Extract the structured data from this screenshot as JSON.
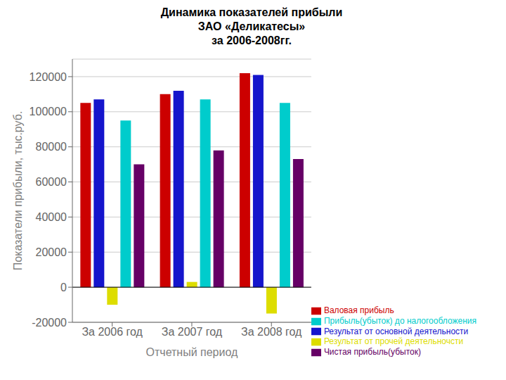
{
  "chart_data": {
    "type": "bar",
    "title": "Динамика показателей прибыли\nЗАО «Деликатесы»\nза 2006-2008гг.",
    "xlabel": "Отчетный период",
    "ylabel": "Показатели прибыли, тыс.руб.",
    "categories": [
      "За 2006 год",
      "За 2007 год",
      "За 2008 год"
    ],
    "series": [
      {
        "name": "Валовая прибыль",
        "color": "#CC0000",
        "values": [
          105000,
          110000,
          122000
        ]
      },
      {
        "name": "Результат от основной деятельности",
        "color": "#1515CC",
        "values": [
          107000,
          112000,
          121000
        ]
      },
      {
        "name": "Результат от прочей деятельночсти",
        "color": "#DDDD00",
        "values": [
          -10000,
          3000,
          -15000
        ]
      },
      {
        "name": "Прибыль(убыток) до налогообложения",
        "color": "#00CCCC",
        "values": [
          95000,
          107000,
          105000
        ]
      },
      {
        "name": "Чистая прибыль(убыток)",
        "color": "#660066",
        "values": [
          70000,
          78000,
          73000
        ]
      }
    ],
    "ylim": [
      -20000,
      130000
    ],
    "yticks": [
      -20000,
      0,
      20000,
      40000,
      60000,
      80000,
      100000,
      120000
    ],
    "grid": true,
    "legend": "lower right"
  }
}
